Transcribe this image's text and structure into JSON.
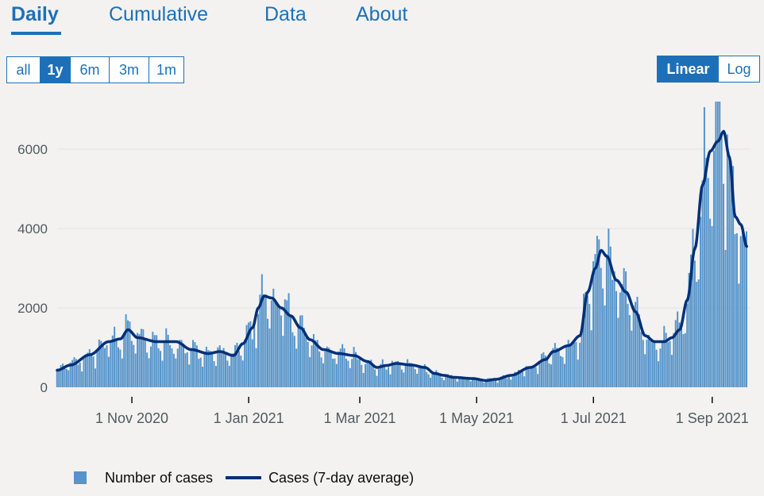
{
  "tabs": [
    {
      "label": "Daily",
      "active": true
    },
    {
      "label": "Cumulative",
      "active": false
    },
    {
      "label": "Data",
      "active": false
    },
    {
      "label": "About",
      "active": false
    }
  ],
  "range_buttons": [
    {
      "label": "all",
      "active": false
    },
    {
      "label": "1y",
      "active": true
    },
    {
      "label": "6m",
      "active": false
    },
    {
      "label": "3m",
      "active": false
    },
    {
      "label": "1m",
      "active": false
    }
  ],
  "scale_buttons": [
    {
      "label": "Linear",
      "active": true
    },
    {
      "label": "Log",
      "active": false
    }
  ],
  "legend": {
    "bar_label": "Number of cases",
    "line_label": "Cases (7-day average)"
  },
  "colors": {
    "accent": "#1d70b8",
    "bar": "#5694ca",
    "line": "#003078",
    "background": "#f3f2f1"
  },
  "chart_data": {
    "type": "bar",
    "title": "",
    "xlabel": "",
    "ylabel": "",
    "ylim": [
      0,
      7200
    ],
    "y_ticks": [
      0,
      2000,
      4000,
      6000
    ],
    "x_ticks": [
      {
        "label": "1 Nov 2020",
        "day": 32
      },
      {
        "label": "1 Jan 2021",
        "day": 93
      },
      {
        "label": "1 Mar 2021",
        "day": 151
      },
      {
        "label": "1 May 2021",
        "day": 212
      },
      {
        "label": "1 Jul 2021",
        "day": 273
      },
      {
        "label": "1 Sep 2021",
        "day": 335
      }
    ],
    "x_range_days": [
      -7,
      355
    ],
    "series": [
      {
        "name": "Cases (7-day average)",
        "type": "line",
        "anchors": [
          [
            -7,
            430
          ],
          [
            0,
            560
          ],
          [
            10,
            820
          ],
          [
            20,
            1150
          ],
          [
            26,
            1220
          ],
          [
            30,
            1450
          ],
          [
            35,
            1250
          ],
          [
            45,
            1150
          ],
          [
            55,
            1150
          ],
          [
            63,
            950
          ],
          [
            72,
            850
          ],
          [
            78,
            900
          ],
          [
            85,
            800
          ],
          [
            90,
            1100
          ],
          [
            95,
            1500
          ],
          [
            98,
            2000
          ],
          [
            101,
            2300
          ],
          [
            105,
            2250
          ],
          [
            110,
            2000
          ],
          [
            115,
            1800
          ],
          [
            120,
            1500
          ],
          [
            125,
            1200
          ],
          [
            132,
            950
          ],
          [
            140,
            850
          ],
          [
            148,
            800
          ],
          [
            155,
            650
          ],
          [
            160,
            500
          ],
          [
            165,
            550
          ],
          [
            170,
            600
          ],
          [
            178,
            560
          ],
          [
            185,
            500
          ],
          [
            190,
            350
          ],
          [
            195,
            300
          ],
          [
            200,
            250
          ],
          [
            210,
            220
          ],
          [
            217,
            170
          ],
          [
            222,
            200
          ],
          [
            230,
            300
          ],
          [
            240,
            500
          ],
          [
            248,
            700
          ],
          [
            252,
            900
          ],
          [
            260,
            1050
          ],
          [
            266,
            1300
          ],
          [
            270,
            2400
          ],
          [
            274,
            3000
          ],
          [
            277,
            3450
          ],
          [
            280,
            3300
          ],
          [
            285,
            2700
          ],
          [
            290,
            2400
          ],
          [
            295,
            1900
          ],
          [
            300,
            1300
          ],
          [
            305,
            1150
          ],
          [
            310,
            1150
          ],
          [
            314,
            1250
          ],
          [
            318,
            1450
          ],
          [
            322,
            2200
          ],
          [
            326,
            3500
          ],
          [
            330,
            5100
          ],
          [
            334,
            5950
          ],
          [
            338,
            6200
          ],
          [
            341,
            6450
          ],
          [
            344,
            5800
          ],
          [
            347,
            4300
          ],
          [
            350,
            4100
          ],
          [
            353,
            3550
          ]
        ]
      },
      {
        "name": "Number of cases",
        "type": "bar",
        "note": "daily values approx. 7-day average with weekly fluctuation; peaks ~7100 early Sep 2021"
      }
    ]
  }
}
